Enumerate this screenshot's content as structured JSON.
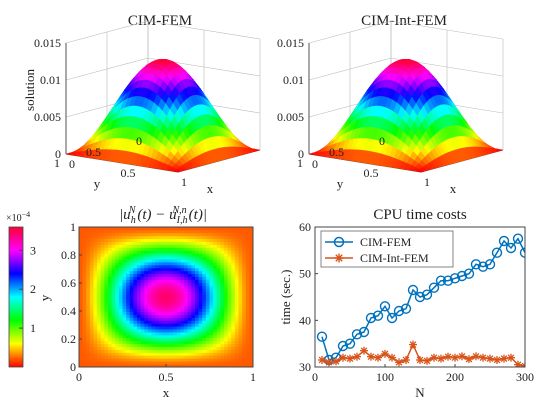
{
  "chart_data": [
    {
      "type": "surface",
      "title": "CIM-FEM",
      "zlabel": "solution",
      "xlabel": "x",
      "ylabel": "y",
      "zlim": [
        0,
        0.015
      ],
      "zticks": [
        "0",
        "0.005",
        "0.01",
        "0.015"
      ],
      "xticks": [
        "0",
        "0.5",
        "1"
      ],
      "yticks": [
        "0",
        "0.5",
        "1"
      ],
      "peak": 0.0125,
      "colormap": "hsv"
    },
    {
      "type": "surface",
      "title": "CIM-Int-FEM",
      "zlabel": "",
      "xlabel": "x",
      "ylabel": "y",
      "zlim": [
        0,
        0.015
      ],
      "zticks": [
        "0",
        "0.005",
        "0.01",
        "0.015"
      ],
      "xticks": [
        "0",
        "0.5",
        "1"
      ],
      "yticks": [
        "0",
        "0.5",
        "1"
      ],
      "peak": 0.0125,
      "colormap": "hsv"
    },
    {
      "type": "heatmap",
      "title_parts": {
        "a": "|u",
        "a_sub": "h",
        "a_sup": "N",
        "b": "(t) − u",
        "b_sub": "I,h",
        "b_sup": "N,n",
        "c": "(t)|"
      },
      "xlabel": "x",
      "ylabel": "y",
      "xticks": [
        "0",
        "0.5",
        "1"
      ],
      "yticks": [
        "0",
        "0.2",
        "0.4",
        "0.6",
        "0.8",
        "1"
      ],
      "colorbar_ticks": [
        "1",
        "2",
        "3"
      ],
      "colorbar_exponent": "×10",
      "colorbar_exponent_power": "−4",
      "clim": [
        0,
        3.6
      ],
      "center": [
        0.52,
        0.5
      ],
      "colormap": "hsv"
    },
    {
      "type": "line",
      "title": "CPU time costs",
      "xlabel": "N",
      "ylabel": "time (sec.)",
      "xlim": [
        0,
        300
      ],
      "ylim": [
        30,
        60
      ],
      "xticks": [
        0,
        100,
        200,
        300
      ],
      "yticks": [
        30,
        40,
        50,
        60
      ],
      "legend_position": "top-left",
      "series": [
        {
          "name": "CIM-FEM",
          "color": "#0072bd",
          "marker": "circle",
          "x": [
            10,
            20,
            30,
            40,
            50,
            60,
            70,
            80,
            90,
            100,
            110,
            120,
            130,
            140,
            150,
            160,
            170,
            180,
            190,
            200,
            210,
            220,
            230,
            240,
            250,
            260,
            270,
            280,
            290,
            300
          ],
          "y": [
            36.5,
            31.5,
            32,
            34.5,
            35,
            37,
            37.5,
            40.5,
            41,
            43,
            40.5,
            42,
            42.5,
            46.5,
            45,
            45.5,
            47,
            48.5,
            48.5,
            49,
            49.5,
            50,
            52,
            51.5,
            52,
            54.5,
            57,
            55.5,
            57.5,
            54.5
          ]
        },
        {
          "name": "CIM-Int-FEM",
          "color": "#d95319",
          "marker": "star",
          "x": [
            10,
            20,
            30,
            40,
            50,
            60,
            70,
            80,
            90,
            100,
            110,
            120,
            130,
            140,
            150,
            160,
            170,
            180,
            190,
            200,
            210,
            220,
            230,
            240,
            250,
            260,
            270,
            280,
            290,
            300
          ],
          "y": [
            31.5,
            31,
            31.2,
            32,
            31.8,
            32.2,
            33.5,
            32.2,
            32,
            32.8,
            32,
            31,
            31.5,
            34.8,
            31.5,
            31.3,
            32,
            31.8,
            32.2,
            32,
            32.3,
            31.7,
            32.3,
            32,
            31.8,
            31.5,
            31.8,
            32,
            30.5,
            30.2
          ]
        }
      ]
    }
  ]
}
